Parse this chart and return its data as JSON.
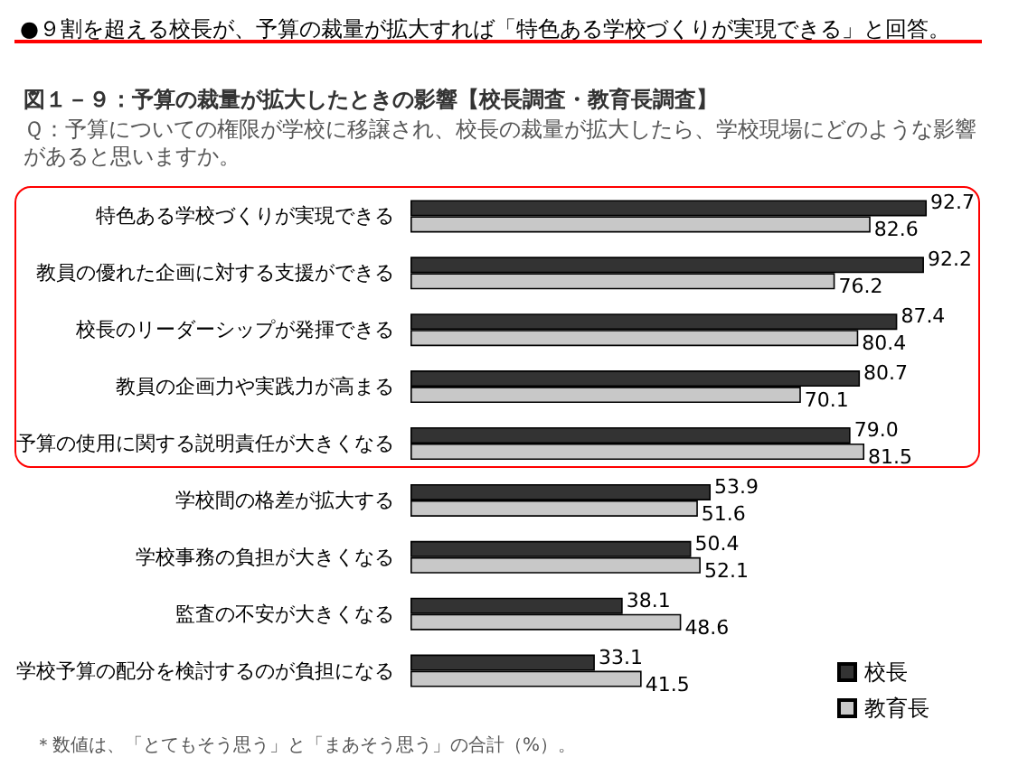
{
  "chart_data": {
    "type": "bar",
    "orientation": "horizontal",
    "title": "●９割を超える校長が、予算の裁量が拡大すれば「特色ある学校づくりが実現できる」と回答。",
    "subtitle": "図１－９：予算の裁量が拡大したときの影響【校長調査・教育長調査】",
    "annotations": [
      "Ｑ：予算についての権限が学校に移譲され、校長の裁量が拡大したら、学校現場にどのような影響があると思いますか。",
      "＊数値は、「とてもそう思う」と「まあそう思う」の合計（%）。"
    ],
    "categories": [
      "特色ある学校づくりが実現できる",
      "教員の優れた企画に対する支援ができる",
      "校長のリーダーシップが発揮できる",
      "教員の企画力や実践力が高まる",
      "予算の使用に関する説明責任が大きくなる",
      "学校間の格差が拡大する",
      "学校事務の負担が大きくなる",
      "監査の不安が大きくなる",
      "学校予算の配分を検討するのが負担になる"
    ],
    "series": [
      {
        "name": "校長",
        "color": "#333333",
        "values": [
          92.7,
          92.2,
          87.4,
          80.7,
          79.0,
          53.9,
          50.4,
          38.1,
          33.1
        ],
        "value_labels": [
          "92.7",
          "92.2",
          "87.4",
          "80.7",
          "79.0",
          "53.9",
          "50.4",
          "38.1",
          "33.1"
        ]
      },
      {
        "name": "教育長",
        "color": "#c8c8c8",
        "values": [
          82.6,
          76.2,
          80.4,
          70.1,
          81.5,
          51.6,
          52.1,
          48.6,
          41.5
        ],
        "value_labels": [
          "82.6",
          "76.2",
          "80.4",
          "70.1",
          "81.5",
          "51.6",
          "52.1",
          "48.6",
          "41.5"
        ]
      }
    ],
    "tick_labels": "y",
    "legend": "bottom right"
  }
}
